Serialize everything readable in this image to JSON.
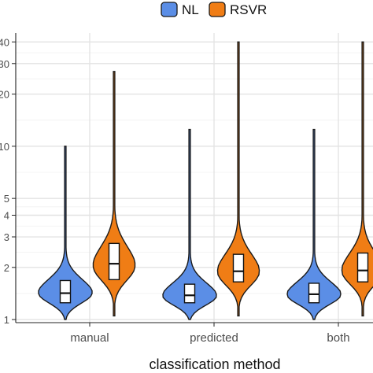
{
  "chart_data": {
    "type": "violin",
    "xlabel": "classification method",
    "ylabel": "",
    "y_scale": "log10",
    "ylim": [
      0.96,
      45
    ],
    "grid": true,
    "legend_position": "top",
    "categories": [
      "manual",
      "predicted",
      "both"
    ],
    "yticks": [
      1,
      2,
      3,
      4,
      5,
      10,
      20,
      30,
      40
    ],
    "ytick_labels": [
      "1",
      "2",
      "3",
      "4",
      "5",
      "10",
      "20",
      "30",
      "40"
    ],
    "series": [
      {
        "name": "NL",
        "color": "#5b8ee6",
        "groups": [
          {
            "min": 1.0,
            "max": 10.0,
            "q1": 1.25,
            "median": 1.42,
            "q3": 1.68,
            "peak": 1.4,
            "spread": 0.085
          },
          {
            "min": 1.0,
            "max": 12.5,
            "q1": 1.25,
            "median": 1.38,
            "q3": 1.6,
            "peak": 1.35,
            "spread": 0.08
          },
          {
            "min": 1.0,
            "max": 12.5,
            "q1": 1.25,
            "median": 1.4,
            "q3": 1.62,
            "peak": 1.37,
            "spread": 0.08
          }
        ]
      },
      {
        "name": "RSVR",
        "color": "#f07d15",
        "groups": [
          {
            "min": 1.05,
            "max": 27.0,
            "q1": 1.7,
            "median": 2.1,
            "q3": 2.75,
            "peak": 2.0,
            "spread": 0.12
          },
          {
            "min": 1.05,
            "max": 40.0,
            "q1": 1.65,
            "median": 1.9,
            "q3": 2.38,
            "peak": 1.85,
            "spread": 0.11
          },
          {
            "min": 1.05,
            "max": 40.0,
            "q1": 1.65,
            "median": 1.92,
            "q3": 2.42,
            "peak": 1.87,
            "spread": 0.11
          }
        ]
      }
    ]
  }
}
